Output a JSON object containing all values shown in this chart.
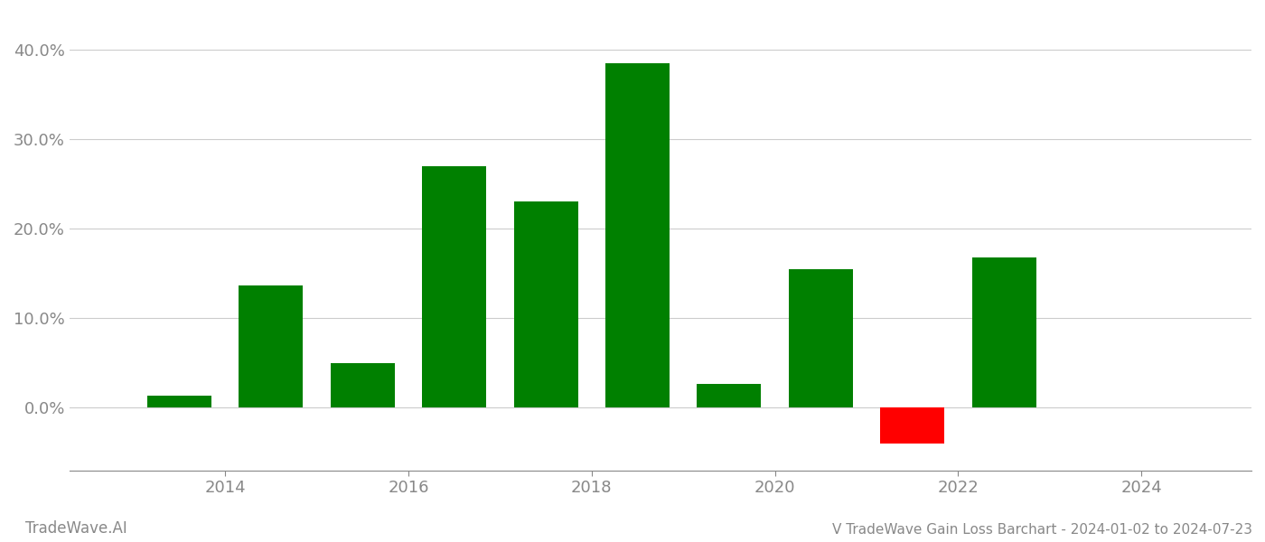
{
  "years": [
    2013,
    2014,
    2015,
    2016,
    2017,
    2018,
    2019,
    2020,
    2021,
    2022,
    2023
  ],
  "values": [
    0.013,
    0.136,
    0.05,
    0.27,
    0.23,
    0.385,
    0.026,
    0.155,
    -0.04,
    0.168,
    0.0
  ],
  "bar_colors": [
    "#008000",
    "#008000",
    "#008000",
    "#008000",
    "#008000",
    "#008000",
    "#008000",
    "#008000",
    "#ff0000",
    "#008000",
    "#008000"
  ],
  "title": "V TradeWave Gain Loss Barchart - 2024-01-02 to 2024-07-23",
  "ylim": [
    -0.07,
    0.44
  ],
  "yticks": [
    0.0,
    0.1,
    0.2,
    0.3,
    0.4
  ],
  "background_color": "#ffffff",
  "grid_color": "#cccccc",
  "bar_width": 0.7,
  "watermark": "TradeWave.AI",
  "tick_color": "#888888",
  "title_fontsize": 11,
  "tick_fontsize": 13,
  "watermark_fontsize": 12,
  "xlim": [
    2012.3,
    2025.2
  ],
  "xticks": [
    2014,
    2016,
    2018,
    2020,
    2022,
    2024
  ],
  "xtick_labels": [
    "2014",
    "2016",
    "2018",
    "2020",
    "2022",
    "2024"
  ]
}
